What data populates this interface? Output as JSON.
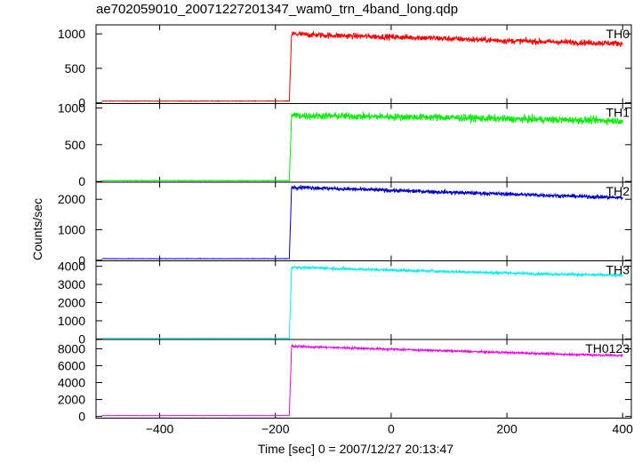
{
  "chart_data": {
    "type": "line",
    "title": "ae702059010_20071227201347_wam0_trn_4band_long.qdp",
    "xlabel": "Time [sec] 0 = 2007/12/27 20:13:47",
    "ylabel": "Counts/sec",
    "xlim": [
      -510,
      415
    ],
    "x_ticks": [
      -400,
      -200,
      0,
      200,
      400
    ],
    "x_tick_labels": [
      "−400",
      "−200",
      "0",
      "200",
      "400"
    ],
    "grid": false,
    "panels": [
      {
        "name": "TH0",
        "color": "#ff0000",
        "ylim": [
          -10,
          1130
        ],
        "y_ticks": [
          0,
          500,
          1000
        ],
        "series": [
          {
            "name": "TH0",
            "x": [
              -500,
              -176,
              -172,
              -150,
              -100,
              -50,
              0,
              50,
              100,
              150,
              200,
              250,
              300,
              350,
              400
            ],
            "y": [
              25,
              25,
              1000,
              990,
              975,
              965,
              955,
              945,
              930,
              915,
              900,
              890,
              880,
              870,
              860
            ],
            "noise": 30
          }
        ]
      },
      {
        "name": "TH1",
        "color": "#00ee00",
        "ylim": [
          -10,
          1060
        ],
        "y_ticks": [
          0,
          500,
          1000
        ],
        "series": [
          {
            "name": "TH1",
            "x": [
              -500,
              -176,
              -172,
              -150,
              -100,
              -50,
              0,
              50,
              100,
              150,
              200,
              250,
              300,
              350,
              400
            ],
            "y": [
              10,
              10,
              900,
              895,
              890,
              885,
              880,
              875,
              870,
              860,
              850,
              845,
              838,
              832,
              825
            ],
            "noise": 35
          }
        ]
      },
      {
        "name": "TH2",
        "color": "#0000cc",
        "ylim": [
          -20,
          2560
        ],
        "y_ticks": [
          0,
          1000,
          2000
        ],
        "series": [
          {
            "name": "TH2",
            "x": [
              -500,
              -176,
              -172,
              -150,
              -100,
              -50,
              0,
              50,
              100,
              150,
              200,
              250,
              300,
              350,
              400
            ],
            "y": [
              50,
              50,
              2400,
              2390,
              2350,
              2320,
              2290,
              2260,
              2230,
              2200,
              2170,
              2140,
              2110,
              2080,
              2050
            ],
            "noise": 45
          }
        ]
      },
      {
        "name": "TH3",
        "color": "#00eeee",
        "ylim": [
          -30,
          4300
        ],
        "y_ticks": [
          0,
          1000,
          2000,
          3000,
          4000
        ],
        "series": [
          {
            "name": "TH3",
            "x": [
              -500,
              -176,
              -172,
              -150,
              -100,
              -50,
              0,
              50,
              100,
              150,
              200,
              250,
              300,
              350,
              400
            ],
            "y": [
              30,
              30,
              3950,
              3930,
              3880,
              3830,
              3790,
              3750,
              3710,
              3670,
              3630,
              3590,
              3560,
              3530,
              3500
            ],
            "noise": 50
          }
        ]
      },
      {
        "name": "TH0123",
        "color": "#ee00ee",
        "ylim": [
          -200,
          9100
        ],
        "y_ticks": [
          0,
          2000,
          4000,
          6000,
          8000
        ],
        "series": [
          {
            "name": "TH0123",
            "x": [
              -500,
              -176,
              -172,
              -150,
              -100,
              -50,
              0,
              50,
              100,
              150,
              200,
              250,
              300,
              350,
              400
            ],
            "y": [
              100,
              100,
              8300,
              8250,
              8150,
              8050,
              7950,
              7850,
              7750,
              7650,
              7550,
              7450,
              7350,
              7270,
              7200
            ],
            "noise": 90
          }
        ]
      }
    ]
  }
}
